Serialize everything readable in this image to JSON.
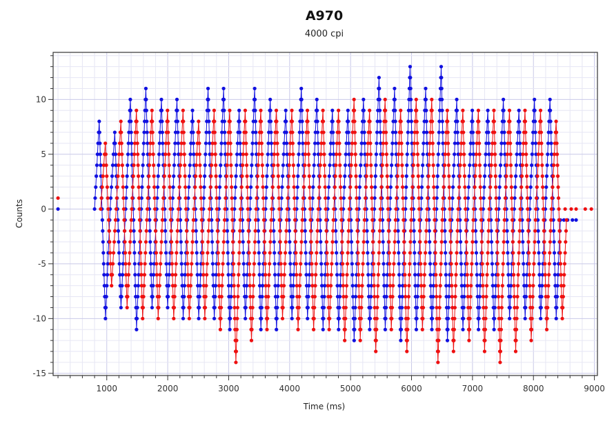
{
  "chart_data": {
    "type": "scatter",
    "title": "A970",
    "subtitle": "4000 cpi",
    "xlabel": "Time (ms)",
    "ylabel": "Counts",
    "xlim": [
      120,
      9050
    ],
    "ylim": [
      -15.2,
      14.3
    ],
    "xticks": [
      1000,
      2000,
      3000,
      4000,
      5000,
      6000,
      7000,
      8000,
      9000
    ],
    "yticks": [
      -15,
      -10,
      -5,
      0,
      5,
      10
    ],
    "grid": true,
    "cycle_period_ms": 255,
    "series": [
      {
        "name": "blue",
        "color": "#1010e0",
        "cycle_start_ms": 800,
        "peaks": [
          8,
          7,
          10,
          11,
          10,
          10,
          9,
          11,
          11,
          9,
          11,
          10,
          9,
          11,
          10,
          9,
          9,
          10,
          12,
          11,
          13,
          11,
          13,
          10,
          9,
          9,
          10,
          9,
          10,
          10
        ],
        "troughs": [
          -10,
          -9,
          -11,
          -9,
          -9,
          -10,
          -10,
          -10,
          -11,
          -10,
          -11,
          -11,
          -10,
          -10,
          -11,
          -11,
          -12,
          -11,
          -11,
          -12,
          -11,
          -11,
          -12,
          -11,
          -11,
          -11,
          -10,
          -10,
          -10,
          -10
        ],
        "extra_points": [
          [
            200,
            0
          ],
          [
            8420,
            -1
          ],
          [
            8500,
            -1
          ],
          [
            8560,
            -1
          ],
          [
            8640,
            -1
          ],
          [
            8700,
            -1
          ]
        ]
      },
      {
        "name": "red",
        "color": "#ee1010",
        "cycle_start_ms": 900,
        "peaks": [
          6,
          8,
          9,
          9,
          9,
          9,
          8,
          9,
          9,
          9,
          9,
          9,
          9,
          9,
          9,
          9,
          10,
          9,
          10,
          9,
          10,
          10,
          9,
          9,
          9,
          9,
          9,
          9,
          9,
          8
        ],
        "troughs": [
          -7,
          -9,
          -10,
          -10,
          -10,
          -10,
          -10,
          -11,
          -14,
          -12,
          -11,
          -10,
          -11,
          -11,
          -11,
          -12,
          -12,
          -13,
          -11,
          -13,
          -11,
          -14,
          -13,
          -12,
          -13,
          -14,
          -13,
          -12,
          -11,
          -10
        ],
        "extra_points": [
          [
            200,
            1
          ],
          [
            8520,
            0
          ],
          [
            8620,
            0
          ],
          [
            8700,
            0
          ],
          [
            8850,
            0
          ],
          [
            8950,
            0
          ]
        ]
      }
    ]
  }
}
